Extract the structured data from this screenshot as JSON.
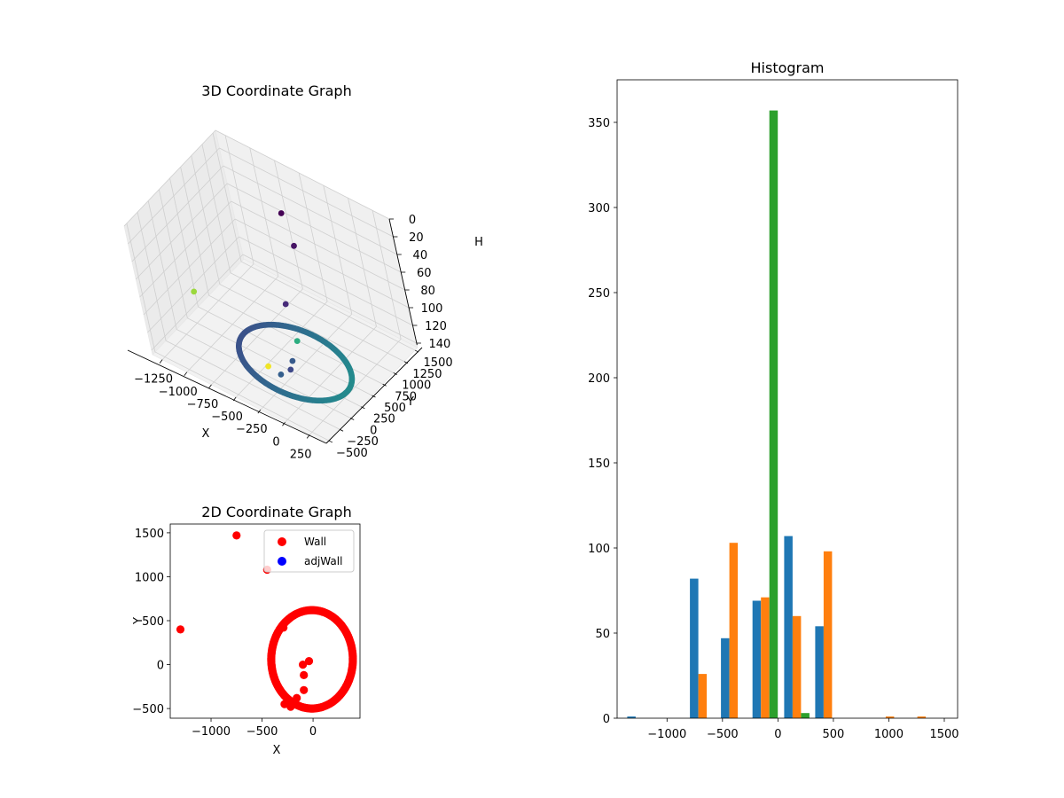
{
  "chart_data": [
    {
      "type": "scatter3d",
      "title": "3D Coordinate Graph",
      "xlabel": "X",
      "ylabel": "Y",
      "zlabel": "H",
      "x_ticks": [
        -1250,
        -1000,
        -750,
        -500,
        -250,
        0,
        250
      ],
      "x_tick_labels": [
        "−1250",
        "−1000",
        "−750",
        "−500",
        "−250",
        "0",
        "250"
      ],
      "y_ticks": [
        -500,
        -250,
        0,
        250,
        500,
        750,
        1000,
        1250,
        1500
      ],
      "y_tick_labels": [
        "−500",
        "−250",
        "0",
        "250",
        "500",
        "750",
        "1000",
        "1250",
        "1500"
      ],
      "z_ticks": [
        0,
        20,
        40,
        60,
        80,
        100,
        120,
        140
      ],
      "z_tick_labels": [
        "0",
        "20",
        "40",
        "60",
        "80",
        "100",
        "120",
        "140"
      ],
      "xlim": [
        -1350,
        420
      ],
      "ylim": [
        -560,
        1560
      ],
      "zlim": [
        0,
        145
      ],
      "z_inverted": true,
      "ring": {
        "center_x": -105,
        "center_y": 55,
        "radius_x": 510,
        "radius_y": 560,
        "h_min": 110,
        "h_max": 120
      },
      "outliers": [
        {
          "x": -1300,
          "y": 400,
          "h": 120
        },
        {
          "x": -750,
          "y": 1470,
          "h": 55
        },
        {
          "x": -450,
          "y": 1080,
          "h": 55
        },
        {
          "x": -290,
          "y": 420,
          "h": 78
        },
        {
          "x": -100,
          "y": 0,
          "h": 110
        },
        {
          "x": -90,
          "y": -290,
          "h": 110
        },
        {
          "x": -20,
          "y": 40,
          "h": 85
        },
        {
          "x": -160,
          "y": -380,
          "h": 100
        },
        {
          "x": -70,
          "y": -120,
          "h": 112
        }
      ],
      "colormap": "viridis",
      "grid": true
    },
    {
      "type": "scatter",
      "title": "2D Coordinate Graph",
      "xlabel": "X",
      "ylabel": "Y",
      "xlim": [
        -1400,
        460
      ],
      "ylim": [
        -610,
        1600
      ],
      "x_ticks": [
        -1000,
        -500,
        0
      ],
      "x_tick_labels": [
        "−1000",
        "−500",
        "0"
      ],
      "y_ticks": [
        -500,
        0,
        500,
        1000,
        1500
      ],
      "y_tick_labels": [
        "−500",
        "0",
        "500",
        "1000",
        "1500"
      ],
      "series": [
        {
          "name": "Wall",
          "color": "#ff0000",
          "ring": {
            "center_x": -10,
            "center_y": 60,
            "radius_x": 400,
            "radius_y": 560
          },
          "points": [
            [
              -1300,
              400
            ],
            [
              -750,
              1470
            ],
            [
              -450,
              1080
            ],
            [
              -290,
              420
            ],
            [
              -100,
              0
            ],
            [
              -40,
              40
            ],
            [
              -90,
              -120
            ],
            [
              -90,
              -290
            ],
            [
              -160,
              -380
            ],
            [
              -280,
              -450
            ],
            [
              -220,
              -480
            ]
          ]
        },
        {
          "name": "adjWall",
          "color": "#0000ff",
          "points": []
        }
      ],
      "legend": "upper right"
    },
    {
      "type": "bar",
      "title": "Histogram",
      "xlim": [
        -1450,
        1620
      ],
      "ylim": [
        0,
        375
      ],
      "x_ticks": [
        -1000,
        -500,
        0,
        500,
        1000,
        1500
      ],
      "x_tick_labels": [
        "−1000",
        "−500",
        "0",
        "500",
        "1000",
        "1500"
      ],
      "y_ticks": [
        0,
        50,
        100,
        150,
        200,
        250,
        300,
        350
      ],
      "y_tick_labels": [
        "0",
        "50",
        "100",
        "150",
        "200",
        "250",
        "300",
        "350"
      ],
      "bin_centers": [
        -1245,
        -680,
        -400,
        -115,
        170,
        450,
        730,
        1010,
        1295
      ],
      "bar_width": 76,
      "series": [
        {
          "color": "#1f77b4",
          "values": [
            1,
            82,
            47,
            69,
            107,
            54,
            0,
            0,
            0
          ]
        },
        {
          "color": "#ff7f0e",
          "values": [
            0,
            26,
            103,
            71,
            60,
            98,
            0,
            1,
            1
          ]
        },
        {
          "color": "#2ca02c",
          "values": [
            0,
            0,
            0,
            357,
            3,
            0,
            0,
            0,
            0
          ]
        }
      ]
    }
  ]
}
